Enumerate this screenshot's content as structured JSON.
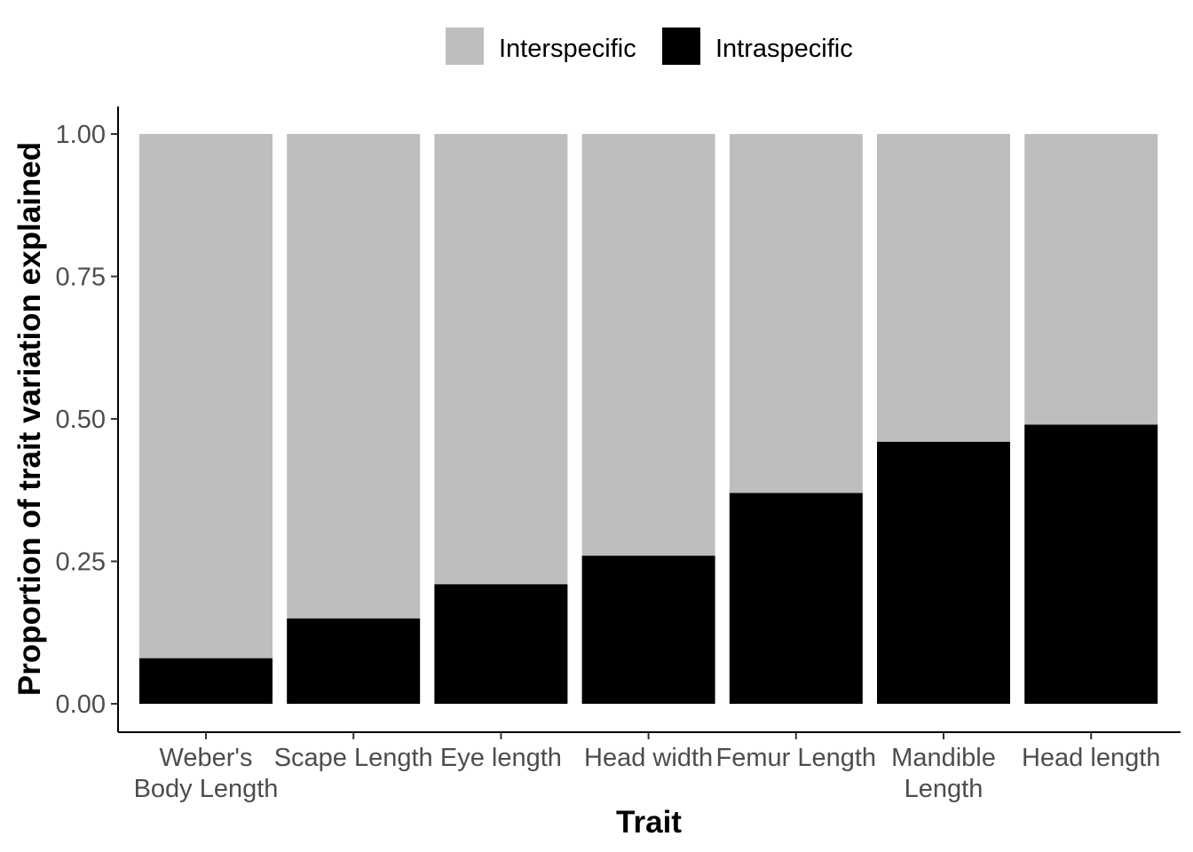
{
  "chart_data": {
    "type": "bar",
    "stacked": true,
    "categories": [
      [
        "Weber's",
        "Body Length"
      ],
      [
        "Scape Length"
      ],
      [
        "Eye length"
      ],
      [
        "Head width"
      ],
      [
        "Femur Length"
      ],
      [
        "Mandible",
        "Length"
      ],
      [
        "Head length"
      ]
    ],
    "series": [
      {
        "name": "Intraspecific",
        "color": "#000000",
        "values": [
          0.08,
          0.15,
          0.21,
          0.26,
          0.37,
          0.46,
          0.49
        ]
      },
      {
        "name": "Interspecific",
        "color": "#bebebe",
        "values": [
          0.92,
          0.85,
          0.79,
          0.74,
          0.63,
          0.54,
          0.51
        ]
      }
    ],
    "legend_order": [
      "Interspecific",
      "Intraspecific"
    ],
    "legend_position": "top",
    "xlabel": "Trait",
    "ylabel": "Proportion of trait variation explained",
    "ylim": [
      0,
      1
    ],
    "yticks": [
      "0.00",
      "0.25",
      "0.50",
      "0.75",
      "1.00"
    ],
    "grid": false
  }
}
